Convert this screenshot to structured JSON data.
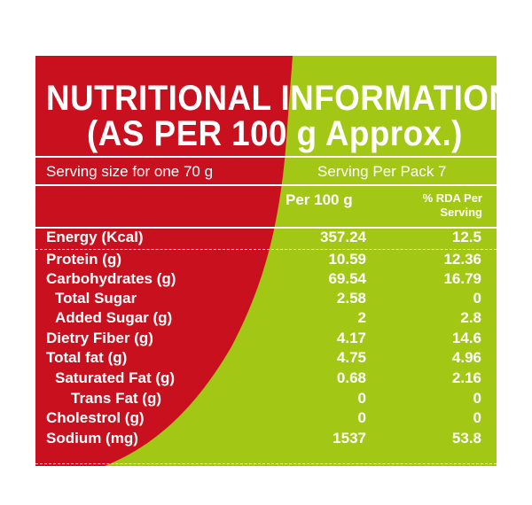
{
  "title_line1": "NUTRITIONAL INFORMATION",
  "title_line2": "(AS PER 100 g Approx.)",
  "serving_size": "Serving size for one 70 g",
  "serving_per_pack": "Serving Per Pack 7",
  "col_per100": "Per 100 g",
  "col_rda_line1": "% RDA Per",
  "col_rda_line2": "Serving",
  "colors": {
    "red": "#c8101e",
    "green": "#a2c714",
    "text": "#ffffff"
  },
  "rows": [
    {
      "label": "Energy (Kcal)",
      "per100": "357.24",
      "rda": "12.5"
    },
    {
      "label": "Protein (g)",
      "per100": "10.59",
      "rda": "12.36"
    },
    {
      "label": "Carbohydrates (g)",
      "per100": "69.54",
      "rda": "16.79"
    },
    {
      "label": "Total Sugar",
      "per100": "2.58",
      "rda": "0"
    },
    {
      "label": "Added Sugar (g)",
      "per100": "2",
      "rda": "2.8"
    },
    {
      "label": "Dietry Fiber (g)",
      "per100": "4.17",
      "rda": "14.6"
    },
    {
      "label": "Total fat (g)",
      "per100": "4.75",
      "rda": "4.96"
    },
    {
      "label": "Saturated Fat (g)",
      "per100": "0.68",
      "rda": "2.16"
    },
    {
      "label": "Trans Fat (g)",
      "per100": "0",
      "rda": "0"
    },
    {
      "label": "Cholestrol (g)",
      "per100": "0",
      "rda": "0"
    },
    {
      "label": "Sodium (mg)",
      "per100": "1537",
      "rda": "53.8"
    }
  ]
}
